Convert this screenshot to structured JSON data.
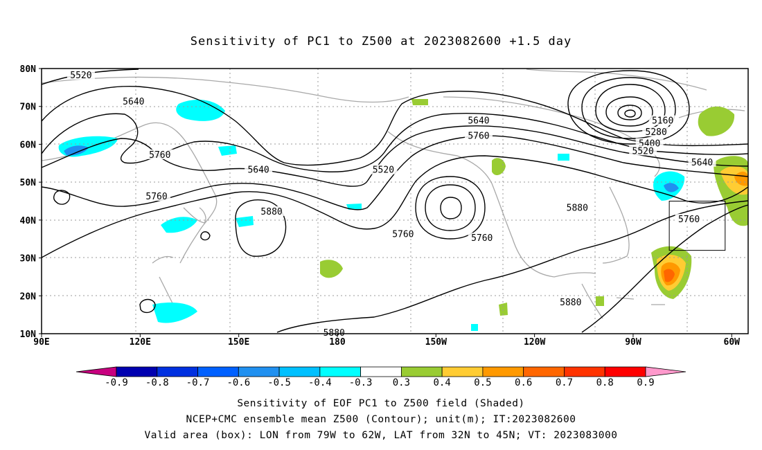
{
  "title": "Sensitivity of PC1 to Z500 at 2023082600 +1.5 day",
  "axes": {
    "lat_labels": [
      "80N",
      "70N",
      "60N",
      "50N",
      "40N",
      "30N",
      "20N",
      "10N"
    ],
    "lon_labels": [
      "90E",
      "120E",
      "150E",
      "180",
      "150W",
      "120W",
      "90W",
      "60W"
    ]
  },
  "contour_labels": [
    {
      "text": "5520",
      "lon": 102,
      "lat": 78
    },
    {
      "text": "5640",
      "lon": 118,
      "lat": 71
    },
    {
      "text": "5760",
      "lon": 126,
      "lat": 57
    },
    {
      "text": "5640",
      "lon": 156,
      "lat": 53
    },
    {
      "text": "5760",
      "lon": 125,
      "lat": 46
    },
    {
      "text": "5880",
      "lon": 160,
      "lat": 42
    },
    {
      "text": "5520",
      "lon": 194,
      "lat": 53
    },
    {
      "text": "5760",
      "lon": 200,
      "lat": 36
    },
    {
      "text": "5640",
      "lon": 223,
      "lat": 66
    },
    {
      "text": "5760",
      "lon": 223,
      "lat": 62
    },
    {
      "text": "5760",
      "lon": 224,
      "lat": 35
    },
    {
      "text": "5880",
      "lon": 253,
      "lat": 43
    },
    {
      "text": "5880",
      "lon": 251,
      "lat": 18
    },
    {
      "text": "5880",
      "lon": 179,
      "lat": 10
    },
    {
      "text": "5160",
      "lon": 279,
      "lat": 66
    },
    {
      "text": "5280",
      "lon": 277,
      "lat": 63
    },
    {
      "text": "5400",
      "lon": 275,
      "lat": 60
    },
    {
      "text": "5520",
      "lon": 273,
      "lat": 58
    },
    {
      "text": "5640",
      "lon": 291,
      "lat": 55
    },
    {
      "text": "5760",
      "lon": 287,
      "lat": 40
    }
  ],
  "valid_box": {
    "lon_w": 281,
    "lon_e": 298,
    "lat_s": 32,
    "lat_n": 45
  },
  "colorbar": {
    "labels": [
      "-0.9",
      "-0.8",
      "-0.7",
      "-0.6",
      "-0.5",
      "-0.4",
      "-0.3",
      "0.3",
      "0.4",
      "0.5",
      "0.6",
      "0.7",
      "0.8",
      "0.9"
    ],
    "colors": [
      "#c8007f",
      "#0000b0",
      "#0030e0",
      "#0060ff",
      "#2090f0",
      "#00c0ff",
      "#00ffff",
      "#ffffff",
      "#99cc33",
      "#ffcc33",
      "#ff9900",
      "#ff6600",
      "#ff3300",
      "#ff0000",
      "#ff99cc"
    ]
  },
  "caption": {
    "line1": "Sensitivity of EOF PC1 to Z500 field (Shaded)",
    "line2": "NCEP+CMC ensemble mean Z500 (Contour); unit(m); IT:2023082600",
    "line3": "Valid area (box): LON from 79W to 62W, LAT from 32N to 45N; VT: 2023083000"
  }
}
